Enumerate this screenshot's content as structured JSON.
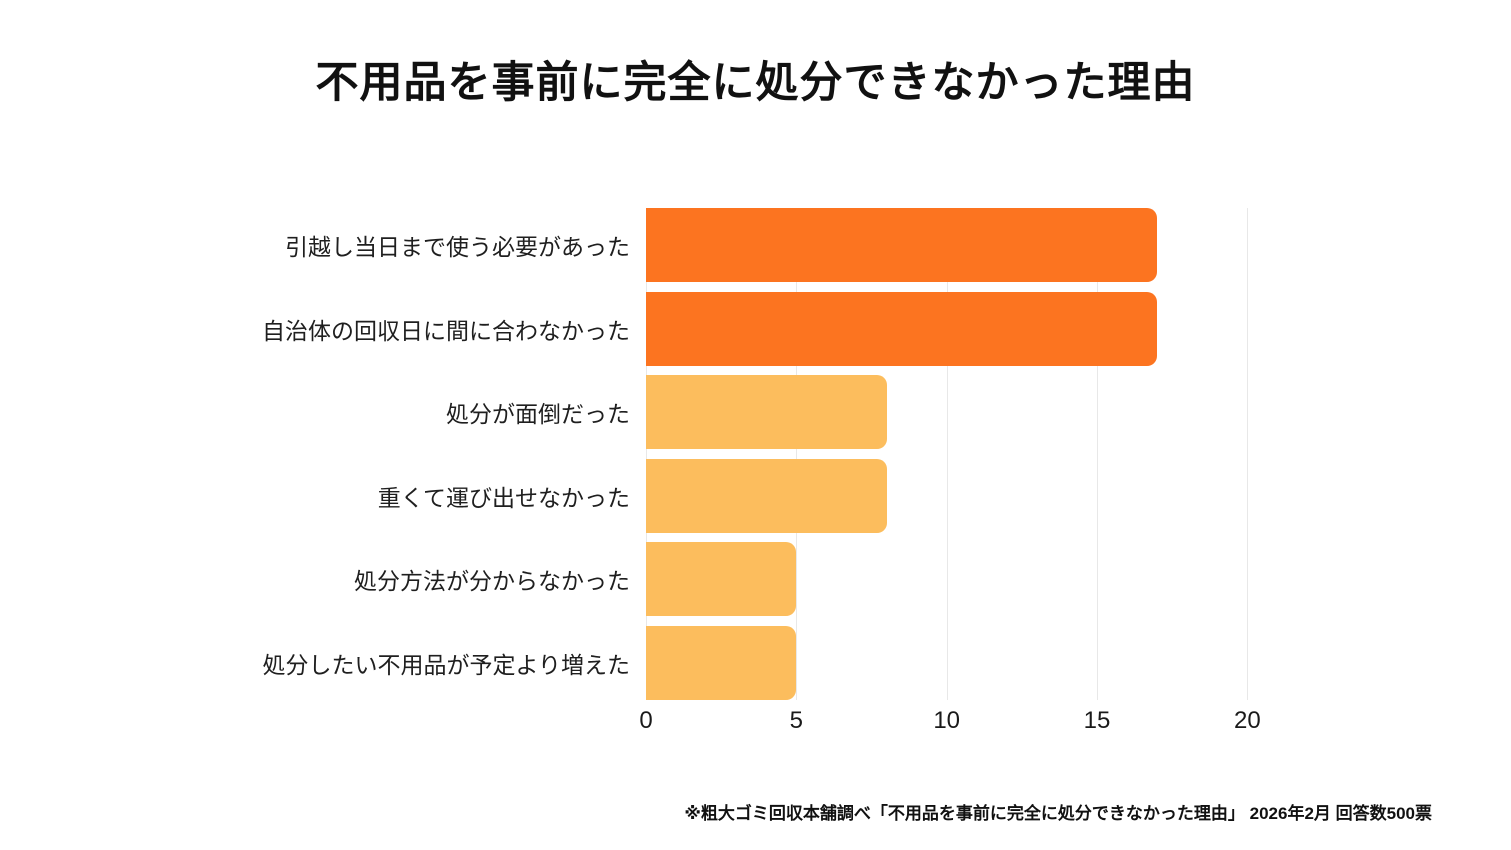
{
  "chart_data": {
    "type": "bar",
    "orientation": "horizontal",
    "title": "不用品を事前に完全に処分できなかった理由",
    "categories": [
      "引越し当日まで使う必要があった",
      "自治体の回収日に間に合わなかった",
      "処分が面倒だった",
      "重くて運び出せなかった",
      "処分方法が分からなかった",
      "処分したい不用品が予定より増えた"
    ],
    "values": [
      17,
      17,
      8,
      8,
      5,
      5
    ],
    "bar_colors": [
      "#fc7420",
      "#fc7420",
      "#fcbd5d",
      "#fcbd5d",
      "#fcbd5d",
      "#fcbd5d"
    ],
    "highlight_color": "#fc7420",
    "base_color": "#fcbd5d",
    "xlim": [
      0,
      21.95
    ],
    "xticks": [
      0,
      5,
      10,
      15,
      20
    ],
    "grid": true,
    "gridline_color": "#e8e8e8",
    "xlabel": "",
    "ylabel": "",
    "legend": null
  },
  "footer": {
    "note": "※粗大ゴミ回収本舗調べ「不用品を事前に完全に処分できなかった理由」 2026年2月 回答数500票"
  }
}
